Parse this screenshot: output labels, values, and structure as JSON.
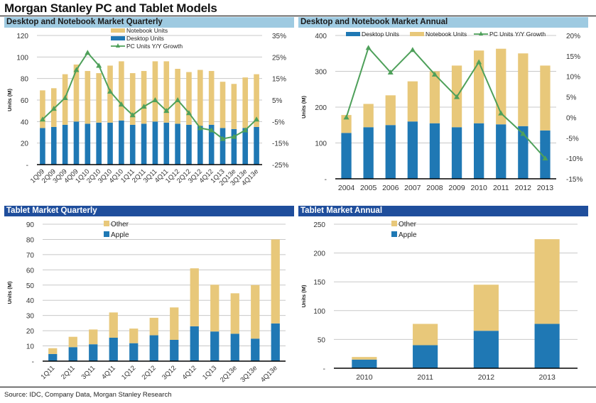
{
  "page": {
    "title": "Morgan Stanley PC and Tablet Models",
    "source": "Source: IDC, Company Data, Morgan Stanley Research"
  },
  "colors": {
    "notebook": "#e8c87a",
    "desktop": "#1f78b4",
    "other": "#e8c87a",
    "apple": "#1f78b4",
    "growth": "#4ea05a",
    "header_light": "#9ecae1",
    "header_dark": "#1f4e9c",
    "grid": "#c8c8c8"
  },
  "chart_data": [
    {
      "id": "pc-quarterly",
      "type": "bar",
      "stacked": true,
      "title": "Desktop and Notebook Market Quarterly",
      "ylabel": "Units (M)",
      "ylim": [
        0,
        120
      ],
      "yticks": [
        0,
        20,
        40,
        60,
        80,
        100,
        120
      ],
      "ytick_labels": [
        "-",
        "20",
        "40",
        "60",
        "80",
        "100",
        "120"
      ],
      "y2lim": [
        -25,
        35
      ],
      "y2ticks": [
        -25,
        -15,
        -5,
        5,
        15,
        25,
        35
      ],
      "y2tick_labels": [
        "-25%",
        "-15%",
        "-5%",
        "5%",
        "15%",
        "25%",
        "35%"
      ],
      "grid": true,
      "legend_position": "top-center",
      "categories": [
        "1Q09",
        "2Q09",
        "3Q09",
        "4Q09",
        "1Q10",
        "2Q10",
        "3Q10",
        "4Q10",
        "1Q11",
        "2Q11",
        "3Q11",
        "4Q11",
        "1Q12",
        "2Q12",
        "3Q12",
        "4Q12",
        "1Q13",
        "2Q13e",
        "3Q13e",
        "4Q13e"
      ],
      "series": [
        {
          "name": "Desktop Units",
          "kind": "bar",
          "color": "#1f78b4",
          "values": [
            34,
            35,
            37,
            40,
            38,
            39,
            39,
            41,
            37,
            38,
            40,
            39,
            38,
            37,
            36,
            37,
            34,
            33,
            34,
            35
          ]
        },
        {
          "name": "Notebook Units",
          "kind": "bar",
          "color": "#e8c87a",
          "values": [
            35,
            36,
            47,
            53,
            49,
            46,
            53,
            55,
            48,
            49,
            56,
            57,
            51,
            49,
            52,
            50,
            43,
            42,
            47,
            49
          ]
        },
        {
          "name": "PC Units Y/Y Growth",
          "kind": "line",
          "axis": "right",
          "color": "#4ea05a",
          "values": [
            -4,
            1,
            6,
            19,
            27,
            21,
            9,
            3,
            -2,
            2,
            5,
            0,
            5,
            -1,
            -8,
            -9,
            -13,
            -12,
            -9,
            -4
          ]
        }
      ],
      "legend": [
        "Notebook Units",
        "Desktop Units",
        "PC Units Y/Y Growth"
      ]
    },
    {
      "id": "pc-annual",
      "type": "bar",
      "stacked": true,
      "title": "Desktop and Notebook Market Annual",
      "ylabel": "Units (M)",
      "ylim": [
        0,
        400
      ],
      "yticks": [
        0,
        100,
        200,
        300,
        400
      ],
      "ytick_labels": [
        "-",
        "100",
        "200",
        "300",
        "400"
      ],
      "y2lim": [
        -15,
        20
      ],
      "y2ticks": [
        -15,
        -10,
        -5,
        0,
        5,
        10,
        15,
        20
      ],
      "y2tick_labels": [
        "-15%",
        "-10%",
        "-5%",
        "0%",
        "5%",
        "10%",
        "15%",
        "20%"
      ],
      "grid": true,
      "legend_position": "top",
      "categories": [
        "2004",
        "2005",
        "2006",
        "2007",
        "2008",
        "2009",
        "2010",
        "2011",
        "2012",
        "2013"
      ],
      "series": [
        {
          "name": "Desktop Units",
          "kind": "bar",
          "color": "#1f78b4",
          "values": [
            128,
            144,
            150,
            160,
            155,
            144,
            155,
            152,
            147,
            135
          ]
        },
        {
          "name": "Notebook Units",
          "kind": "bar",
          "color": "#e8c87a",
          "values": [
            50,
            65,
            83,
            112,
            145,
            172,
            203,
            211,
            203,
            181
          ]
        },
        {
          "name": "PC Units Y/Y Growth",
          "kind": "line",
          "axis": "right",
          "color": "#4ea05a",
          "values": [
            0,
            17,
            11,
            16.5,
            10.5,
            5,
            13.5,
            1,
            -4,
            -10
          ]
        }
      ],
      "legend": [
        "Desktop Units",
        "Notebook Units",
        "PC Units Y/Y Growth"
      ]
    },
    {
      "id": "tablet-quarterly",
      "type": "bar",
      "stacked": true,
      "title": "Tablet Market Quarterly",
      "ylabel": "Units (M)",
      "ylim": [
        0,
        90
      ],
      "yticks": [
        0,
        10,
        20,
        30,
        40,
        50,
        60,
        70,
        80,
        90
      ],
      "ytick_labels": [
        "-",
        "10",
        "20",
        "30",
        "40",
        "50",
        "60",
        "70",
        "80",
        "90"
      ],
      "grid": true,
      "legend_position": "top-left",
      "categories": [
        "1Q11",
        "2Q11",
        "3Q11",
        "4Q11",
        "1Q12",
        "2Q12",
        "3Q12",
        "4Q12",
        "1Q13",
        "2Q13e",
        "3Q13e",
        "4Q13e"
      ],
      "series": [
        {
          "name": "Apple",
          "kind": "bar",
          "color": "#1f78b4",
          "values": [
            4.7,
            9.2,
            11.1,
            15.4,
            11.8,
            17,
            14,
            22.9,
            19.5,
            18,
            14.8,
            24.8
          ]
        },
        {
          "name": "Other",
          "kind": "bar",
          "color": "#e8c87a",
          "values": [
            3.8,
            6.8,
            9.7,
            16.6,
            9.6,
            11.5,
            21.3,
            38.1,
            30.7,
            26.6,
            35.2,
            55.2
          ]
        }
      ],
      "legend": [
        "Other",
        "Apple"
      ]
    },
    {
      "id": "tablet-annual",
      "type": "bar",
      "stacked": true,
      "title": "Tablet Market Annual",
      "ylabel": "Units (M)",
      "ylim": [
        0,
        250
      ],
      "yticks": [
        0,
        50,
        100,
        150,
        200,
        250
      ],
      "ytick_labels": [
        "-",
        "50",
        "100",
        "150",
        "200",
        "250"
      ],
      "grid": true,
      "legend_position": "top-left",
      "categories": [
        "2010",
        "2011",
        "2012",
        "2013"
      ],
      "series": [
        {
          "name": "Apple",
          "kind": "bar",
          "color": "#1f78b4",
          "values": [
            15,
            40,
            65,
            77
          ]
        },
        {
          "name": "Other",
          "kind": "bar",
          "color": "#e8c87a",
          "values": [
            4.5,
            37,
            80,
            147
          ]
        }
      ],
      "legend": [
        "Other",
        "Apple"
      ]
    }
  ]
}
